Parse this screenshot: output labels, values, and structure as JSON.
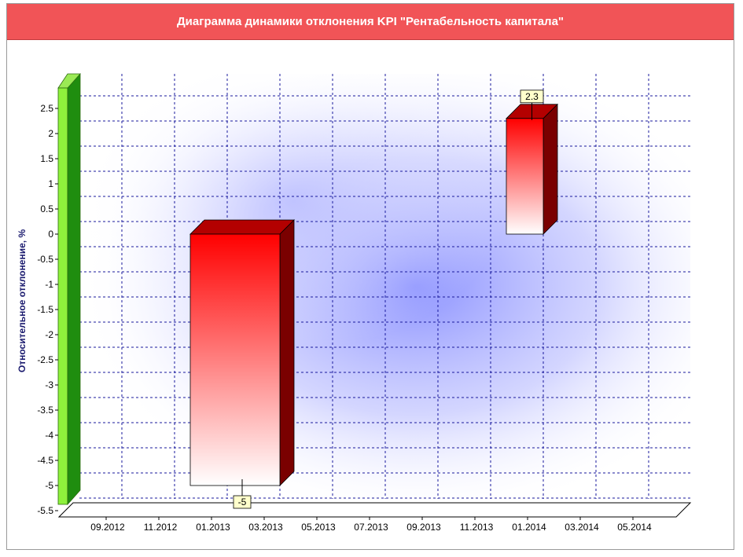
{
  "chart_data": {
    "type": "bar",
    "title": "Диаграмма динамики отклонения KPI \"Рентабельность капитала\"",
    "ylabel": "Относительное отклонение, %",
    "xlabel": "",
    "categories": [
      "09.2012",
      "11.2012",
      "01.2013",
      "03.2013",
      "05.2013",
      "07.2013",
      "09.2013",
      "11.2013",
      "01.2014",
      "03.2014",
      "05.2014"
    ],
    "y_ticks": [
      "2.5",
      "2",
      "1.5",
      "1",
      "0.5",
      "0",
      "-0.5",
      "-1",
      "-1.5",
      "-2",
      "-2.5",
      "-3",
      "-3.5",
      "-4",
      "-4.5",
      "-5",
      "-5.5"
    ],
    "ylim": [
      -5.5,
      2.5
    ],
    "bars": [
      {
        "from": "11.2012",
        "to": "03.2013",
        "value": -5,
        "label": "-5"
      },
      {
        "from": "11.2013",
        "to": "01.2014",
        "value": 2.3,
        "label": "2.3"
      }
    ],
    "grid": true,
    "style": "3d",
    "colors": {
      "title_bar": "#f15457",
      "bar_top": "#ff0000",
      "bar_bottom": "#ffffff",
      "bar_side": "#7a0000",
      "y_axis_wall": "#2d9c1a",
      "plot_glow": "#7f86ff",
      "grid": "#1a1a9e",
      "label_box": "#ffffcc"
    }
  }
}
